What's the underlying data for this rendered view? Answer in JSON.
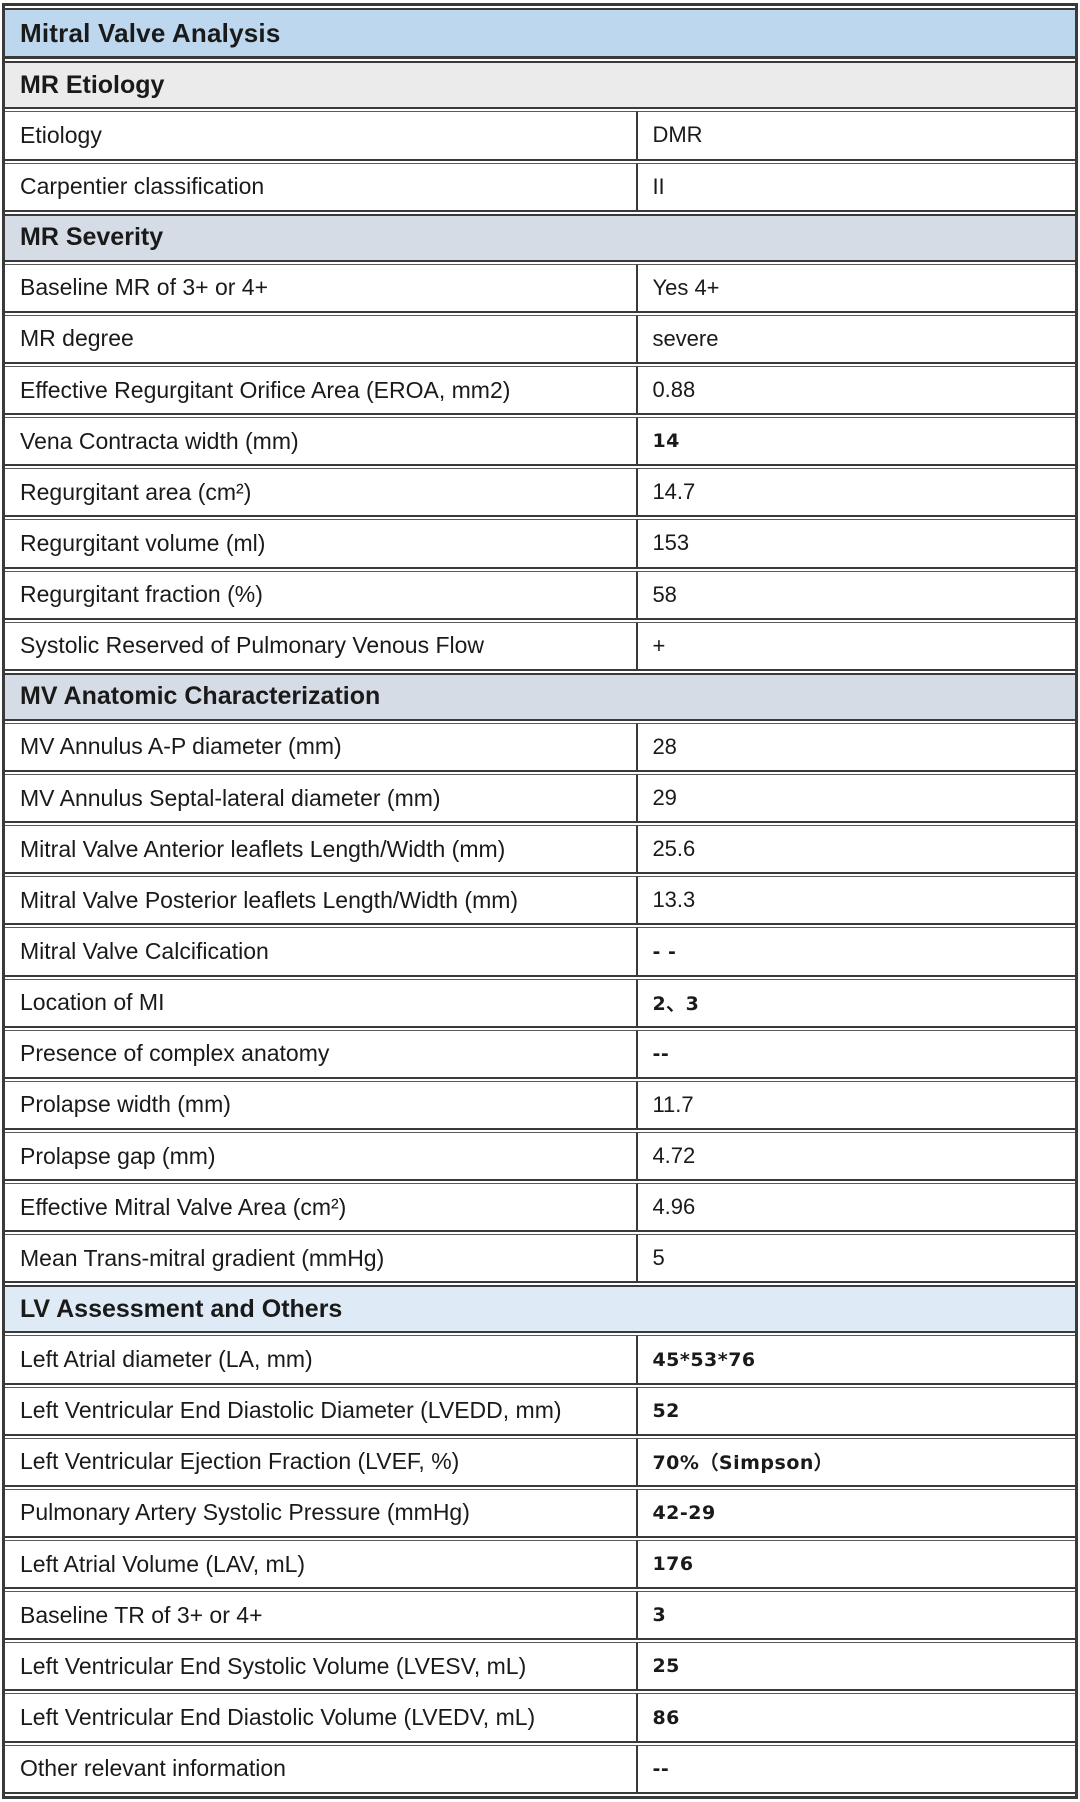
{
  "table": {
    "title": "Mitral Valve Analysis",
    "colors": {
      "title_bg": "#BDD7EE",
      "section_gray_bg": "#EBEBEB",
      "section_bluegray_bg": "#D6DCE5",
      "section_blue_bg": "#DEEBF7",
      "border": "#3A3A3A",
      "text": "#1A1A1A"
    },
    "sections": [
      {
        "label": "MR Etiology",
        "bg": "#EBEBEB",
        "rows": [
          {
            "label": "Etiology",
            "value": "DMR"
          },
          {
            "label": "Carpentier classification",
            "value": "II"
          }
        ]
      },
      {
        "label": "MR Severity",
        "bg": "#D6DCE5",
        "rows": [
          {
            "label": "Baseline MR of 3+ or 4+",
            "value": "Yes 4+"
          },
          {
            "label": "MR degree",
            "value": "severe"
          },
          {
            "label": "Effective Regurgitant Orifice Area (EROA, mm2)",
            "value": "0.88"
          },
          {
            "label": "Vena Contracta width (mm)",
            "value": "14",
            "alt": true
          },
          {
            "label": "Regurgitant area (cm²)",
            "value": "14.7"
          },
          {
            "label": "Regurgitant volume (ml)",
            "value": "153"
          },
          {
            "label": "Regurgitant fraction (%)",
            "value": "58"
          },
          {
            "label": "Systolic Reserved of Pulmonary Venous Flow",
            "value": "+"
          }
        ]
      },
      {
        "label": "MV Anatomic Characterization",
        "bg": "#D6DCE5",
        "rows": [
          {
            "label": "MV Annulus A-P diameter (mm)",
            "value": "28"
          },
          {
            "label": "MV Annulus Septal-lateral diameter (mm)",
            "value": "29"
          },
          {
            "label": "Mitral Valve Anterior leaflets Length/Width (mm)",
            "value": "25.6"
          },
          {
            "label": "Mitral Valve Posterior leaflets Length/Width (mm)",
            "value": "13.3"
          },
          {
            "label": "Mitral Valve Calcification",
            "value": "- -",
            "alt": true
          },
          {
            "label": "Location of MI",
            "value": "2、3",
            "alt": true
          },
          {
            "label": "Presence of complex anatomy",
            "value": "--",
            "alt": true
          },
          {
            "label": "Prolapse width (mm)",
            "value": "11.7"
          },
          {
            "label": "Prolapse gap (mm)",
            "value": "4.72"
          },
          {
            "label": "Effective Mitral Valve Area (cm²)",
            "value": "4.96"
          },
          {
            "label": "Mean Trans-mitral gradient (mmHg)",
            "value": "5"
          }
        ]
      },
      {
        "label": "LV Assessment and Others",
        "bg": "#DEEBF7",
        "rows": [
          {
            "label": "Left Atrial diameter (LA, mm)",
            "value": "45*53*76",
            "alt": true
          },
          {
            "label": "Left Ventricular End Diastolic Diameter (LVEDD, mm)",
            "value": "52",
            "alt": true
          },
          {
            "label": "Left Ventricular Ejection Fraction (LVEF, %)",
            "value": "70%（Simpson）",
            "alt": true
          },
          {
            "label": "Pulmonary Artery Systolic Pressure (mmHg)",
            "value": "42-29",
            "alt": true
          },
          {
            "label": "Left Atrial Volume (LAV, mL)",
            "value": "176",
            "alt": true
          },
          {
            "label": "Baseline TR of 3+ or 4+",
            "value": "3",
            "alt": true
          },
          {
            "label": "Left Ventricular End Systolic Volume (LVESV, mL)",
            "value": "25",
            "alt": true
          },
          {
            "label": "Left Ventricular End Diastolic Volume (LVEDV, mL)",
            "value": "86",
            "alt": true
          },
          {
            "label": "Other relevant information",
            "value": "--",
            "alt": true
          }
        ]
      }
    ]
  }
}
